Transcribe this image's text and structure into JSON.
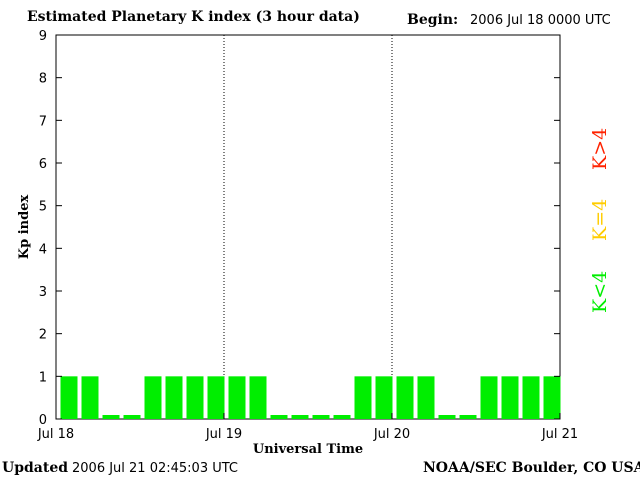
{
  "header": {
    "title": "Estimated Planetary K index (3 hour data)",
    "begin_label": "Begin:",
    "begin_value": "2006 Jul 18 0000 UTC"
  },
  "footer": {
    "updated_label": "Updated",
    "updated_value": "2006 Jul 21 02:45:03 UTC",
    "source": "NOAA/SEC Boulder, CO USA"
  },
  "legend": [
    {
      "label": "K>4",
      "color": "#ff2200"
    },
    {
      "label": "K=4",
      "color": "#ffcc00"
    },
    {
      "label": "K<4",
      "color": "#00ee00"
    }
  ],
  "chart_data": {
    "type": "bar",
    "title": "Estimated Planetary K index (3 hour data)",
    "xlabel": "Universal Time",
    "ylabel": "Kp index",
    "ylim": [
      0,
      9
    ],
    "yticks": [
      0,
      1,
      2,
      3,
      4,
      5,
      6,
      7,
      8,
      9
    ],
    "xticks": [
      "Jul 18",
      "Jul 19",
      "Jul 20",
      "Jul 21"
    ],
    "day_dividers": [
      "Jul 19",
      "Jul 20"
    ],
    "interval_hours": 3,
    "bar_color": "#00ee00",
    "values": [
      1,
      1,
      0,
      0,
      1,
      1,
      1,
      1,
      1,
      1,
      0,
      0,
      0,
      0,
      1,
      1,
      1,
      1,
      0,
      0,
      1,
      1,
      1,
      1
    ]
  }
}
